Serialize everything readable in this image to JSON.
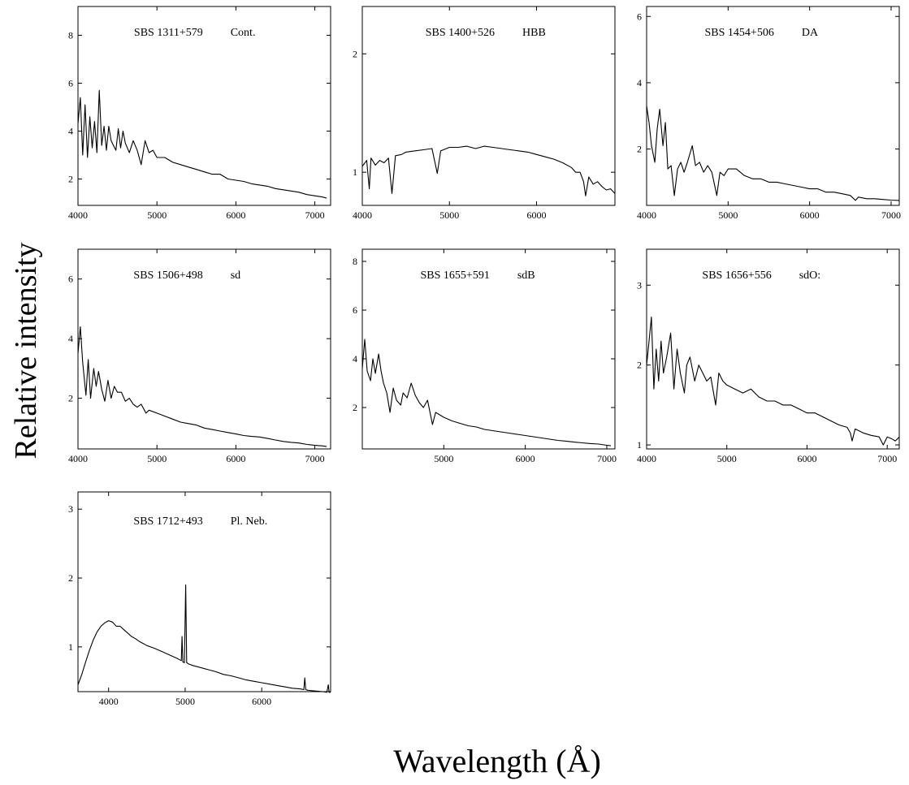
{
  "figure": {
    "xlabel": "Wavelength (Å)",
    "ylabel": "Relative intensity"
  },
  "chart_data": [
    {
      "type": "line",
      "object": "SBS 1311+579",
      "class": "Cont.",
      "xlim": [
        4000,
        7200
      ],
      "ylim": [
        0.9,
        9.2
      ],
      "xticks": [
        4000,
        5000,
        6000,
        7000
      ],
      "yticks": [
        2,
        4,
        6,
        8
      ],
      "x": [
        4000,
        4030,
        4060,
        4090,
        4120,
        4150,
        4180,
        4210,
        4240,
        4270,
        4300,
        4330,
        4360,
        4390,
        4420,
        4450,
        4480,
        4510,
        4540,
        4570,
        4600,
        4650,
        4700,
        4750,
        4800,
        4850,
        4900,
        4950,
        5000,
        5100,
        5200,
        5300,
        5400,
        5500,
        5600,
        5700,
        5800,
        5900,
        6000,
        6100,
        6200,
        6300,
        6400,
        6500,
        6600,
        6700,
        6800,
        6900,
        7000,
        7100,
        7150
      ],
      "y": [
        4.3,
        5.4,
        3.0,
        5.1,
        2.9,
        4.6,
        3.3,
        4.4,
        3.1,
        5.7,
        3.4,
        4.2,
        3.2,
        4.2,
        3.6,
        3.4,
        3.2,
        4.1,
        3.3,
        4.0,
        3.5,
        3.1,
        3.6,
        3.2,
        2.6,
        3.6,
        3.1,
        3.2,
        2.9,
        2.9,
        2.7,
        2.6,
        2.5,
        2.4,
        2.3,
        2.2,
        2.2,
        2.0,
        1.95,
        1.9,
        1.8,
        1.75,
        1.7,
        1.6,
        1.55,
        1.5,
        1.45,
        1.35,
        1.3,
        1.25,
        1.2
      ]
    },
    {
      "type": "line",
      "object": "SBS 1400+526",
      "class": "HBB",
      "xlim": [
        4000,
        6900
      ],
      "ylim": [
        0.72,
        2.4
      ],
      "xticks": [
        4000,
        5000,
        6000
      ],
      "yticks": [
        1,
        2
      ],
      "x": [
        4000,
        4050,
        4080,
        4100,
        4150,
        4200,
        4250,
        4300,
        4340,
        4380,
        4450,
        4500,
        4600,
        4700,
        4800,
        4861,
        4900,
        5000,
        5100,
        5200,
        5300,
        5400,
        5500,
        5600,
        5700,
        5800,
        5900,
        6000,
        6100,
        6200,
        6300,
        6400,
        6450,
        6500,
        6540,
        6563,
        6600,
        6650,
        6700,
        6750,
        6800,
        6850,
        6900
      ],
      "y": [
        1.05,
        1.1,
        0.86,
        1.12,
        1.06,
        1.1,
        1.08,
        1.12,
        0.82,
        1.14,
        1.15,
        1.17,
        1.18,
        1.19,
        1.2,
        0.99,
        1.18,
        1.21,
        1.21,
        1.22,
        1.2,
        1.22,
        1.21,
        1.2,
        1.19,
        1.18,
        1.17,
        1.15,
        1.13,
        1.11,
        1.08,
        1.04,
        1.0,
        1.0,
        0.92,
        0.8,
        0.96,
        0.9,
        0.92,
        0.88,
        0.85,
        0.86,
        0.82
      ]
    },
    {
      "type": "line",
      "object": "SBS 1454+506",
      "class": "DA",
      "xlim": [
        4000,
        7100
      ],
      "ylim": [
        0.3,
        6.3
      ],
      "xticks": [
        4000,
        5000,
        6000,
        7000
      ],
      "yticks": [
        2,
        4,
        6
      ],
      "x": [
        4000,
        4030,
        4060,
        4101,
        4130,
        4160,
        4200,
        4230,
        4260,
        4300,
        4340,
        4380,
        4420,
        4460,
        4500,
        4560,
        4600,
        4650,
        4700,
        4750,
        4800,
        4861,
        4900,
        4950,
        5000,
        5100,
        5200,
        5300,
        5400,
        5500,
        5600,
        5700,
        5800,
        5900,
        6000,
        6100,
        6200,
        6300,
        6400,
        6500,
        6563,
        6600,
        6700,
        6800,
        6900,
        7000,
        7100
      ],
      "y": [
        3.3,
        2.8,
        2.1,
        1.6,
        2.6,
        3.2,
        2.1,
        2.8,
        1.4,
        1.5,
        0.6,
        1.4,
        1.6,
        1.3,
        1.6,
        2.1,
        1.5,
        1.6,
        1.3,
        1.5,
        1.3,
        0.6,
        1.3,
        1.2,
        1.4,
        1.4,
        1.2,
        1.1,
        1.1,
        1.0,
        1.0,
        0.95,
        0.9,
        0.85,
        0.8,
        0.8,
        0.7,
        0.7,
        0.65,
        0.6,
        0.45,
        0.55,
        0.5,
        0.5,
        0.48,
        0.46,
        0.45
      ]
    },
    {
      "type": "line",
      "object": "SBS 1506+498",
      "class": "sd",
      "xlim": [
        4000,
        7200
      ],
      "ylim": [
        0.3,
        7.0
      ],
      "xticks": [
        4000,
        5000,
        6000,
        7000
      ],
      "yticks": [
        2,
        4,
        6
      ],
      "x": [
        4000,
        4030,
        4060,
        4101,
        4130,
        4160,
        4200,
        4230,
        4260,
        4300,
        4340,
        4380,
        4420,
        4460,
        4500,
        4550,
        4600,
        4650,
        4700,
        4750,
        4800,
        4861,
        4900,
        5000,
        5100,
        5200,
        5300,
        5400,
        5500,
        5600,
        5700,
        5800,
        5900,
        6000,
        6100,
        6200,
        6300,
        6400,
        6500,
        6600,
        6700,
        6800,
        6900,
        7000,
        7100,
        7150
      ],
      "y": [
        3.5,
        4.4,
        3.2,
        2.1,
        3.3,
        2.0,
        3.0,
        2.4,
        2.9,
        2.3,
        1.9,
        2.6,
        2.0,
        2.4,
        2.2,
        2.2,
        1.9,
        2.0,
        1.8,
        1.7,
        1.8,
        1.5,
        1.6,
        1.5,
        1.4,
        1.3,
        1.2,
        1.15,
        1.1,
        1.0,
        0.95,
        0.9,
        0.85,
        0.8,
        0.75,
        0.72,
        0.7,
        0.65,
        0.6,
        0.55,
        0.52,
        0.5,
        0.45,
        0.42,
        0.4,
        0.38
      ]
    },
    {
      "type": "line",
      "object": "SBS 1655+591",
      "class": "sdB",
      "xlim": [
        4000,
        7100
      ],
      "ylim": [
        0.3,
        8.5
      ],
      "xticks": [
        5000,
        6000,
        7000
      ],
      "yticks": [
        2,
        4,
        6,
        8
      ],
      "x": [
        4000,
        4030,
        4060,
        4101,
        4130,
        4160,
        4200,
        4230,
        4260,
        4300,
        4340,
        4380,
        4420,
        4471,
        4500,
        4550,
        4600,
        4650,
        4700,
        4750,
        4800,
        4861,
        4900,
        5000,
        5100,
        5200,
        5300,
        5400,
        5500,
        5600,
        5700,
        5800,
        5900,
        6000,
        6100,
        6200,
        6300,
        6400,
        6500,
        6600,
        6700,
        6800,
        6900,
        7000,
        7050
      ],
      "y": [
        3.6,
        4.8,
        3.5,
        3.1,
        4.0,
        3.4,
        4.2,
        3.5,
        3.0,
        2.6,
        1.8,
        2.8,
        2.3,
        2.1,
        2.6,
        2.4,
        3.0,
        2.5,
        2.2,
        2.0,
        2.3,
        1.3,
        1.8,
        1.6,
        1.45,
        1.35,
        1.25,
        1.2,
        1.1,
        1.05,
        1.0,
        0.95,
        0.9,
        0.85,
        0.8,
        0.75,
        0.7,
        0.65,
        0.62,
        0.58,
        0.55,
        0.52,
        0.5,
        0.45,
        0.43
      ]
    },
    {
      "type": "line",
      "object": "SBS 1656+556",
      "class": "sdO:",
      "xlim": [
        4000,
        7150
      ],
      "ylim": [
        0.95,
        3.45
      ],
      "xticks": [
        4000,
        5000,
        6000,
        7000
      ],
      "yticks": [
        1,
        2,
        3
      ],
      "x": [
        4000,
        4030,
        4060,
        4090,
        4120,
        4150,
        4180,
        4210,
        4250,
        4300,
        4340,
        4380,
        4420,
        4471,
        4500,
        4541,
        4600,
        4650,
        4700,
        4750,
        4800,
        4861,
        4900,
        4950,
        5000,
        5100,
        5200,
        5300,
        5400,
        5500,
        5600,
        5700,
        5800,
        5900,
        6000,
        6100,
        6200,
        6300,
        6400,
        6500,
        6540,
        6563,
        6600,
        6700,
        6800,
        6900,
        6950,
        7000,
        7050,
        7100,
        7150
      ],
      "y": [
        2.0,
        2.3,
        2.6,
        1.7,
        2.2,
        1.8,
        2.3,
        1.9,
        2.1,
        2.4,
        1.7,
        2.2,
        1.9,
        1.65,
        2.0,
        2.1,
        1.8,
        2.0,
        1.9,
        1.8,
        1.85,
        1.5,
        1.9,
        1.8,
        1.75,
        1.7,
        1.65,
        1.7,
        1.6,
        1.55,
        1.55,
        1.5,
        1.5,
        1.45,
        1.4,
        1.4,
        1.35,
        1.3,
        1.25,
        1.22,
        1.15,
        1.05,
        1.2,
        1.15,
        1.12,
        1.1,
        1.0,
        1.1,
        1.08,
        1.05,
        1.1
      ]
    },
    {
      "type": "line",
      "object": "SBS 1712+493",
      "class": "Pl. Neb.",
      "xlim": [
        3600,
        6900
      ],
      "ylim": [
        0.35,
        3.25
      ],
      "xticks": [
        4000,
        5000,
        6000
      ],
      "yticks": [
        1,
        2,
        3
      ],
      "x": [
        3600,
        3650,
        3700,
        3750,
        3800,
        3850,
        3900,
        3950,
        4000,
        4050,
        4100,
        4150,
        4200,
        4250,
        4300,
        4350,
        4400,
        4450,
        4500,
        4600,
        4700,
        4800,
        4900,
        4950,
        4959,
        4970,
        4990,
        5007,
        5020,
        5050,
        5100,
        5200,
        5300,
        5400,
        5500,
        5600,
        5700,
        5800,
        5900,
        6000,
        6100,
        6200,
        6300,
        6400,
        6500,
        6550,
        6563,
        6575,
        6600,
        6700,
        6800,
        6850,
        6870,
        6880,
        6900
      ],
      "y": [
        0.45,
        0.6,
        0.78,
        0.95,
        1.1,
        1.22,
        1.3,
        1.35,
        1.38,
        1.36,
        1.3,
        1.3,
        1.25,
        1.2,
        1.15,
        1.12,
        1.08,
        1.05,
        1.02,
        0.98,
        0.93,
        0.88,
        0.83,
        0.8,
        1.15,
        0.78,
        0.77,
        1.9,
        0.77,
        0.75,
        0.73,
        0.7,
        0.67,
        0.64,
        0.6,
        0.58,
        0.55,
        0.52,
        0.5,
        0.48,
        0.46,
        0.44,
        0.42,
        0.4,
        0.39,
        0.38,
        0.55,
        0.38,
        0.37,
        0.36,
        0.35,
        0.34,
        0.45,
        0.34,
        0.34
      ]
    }
  ]
}
